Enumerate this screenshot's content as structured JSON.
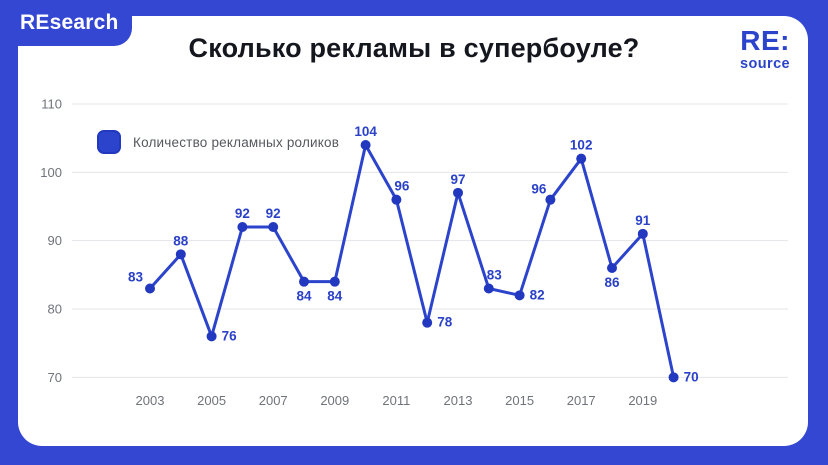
{
  "branding": {
    "badge": "REsearch",
    "logo_line1": "RE:",
    "logo_line2": "source"
  },
  "title": "Сколько рекламы в супербоуле?",
  "legend": {
    "label": "Количество рекламных роликов"
  },
  "colors": {
    "page_bg": "#3347d2",
    "card_bg": "#ffffff",
    "accent": "#2b44cb",
    "line_color": "#2c44cc",
    "point_color": "#2238bf",
    "label_color": "#2a41c8",
    "title_text": "#15171e",
    "axis_text": "#6f737a",
    "legend_text": "#55585e",
    "gridline": "#e4e5e9",
    "badge_text": "#ffffff"
  },
  "chart_data": {
    "type": "line",
    "title": "Сколько рекламы в супербоуле?",
    "xlabel": "",
    "ylabel": "",
    "x": [
      2003,
      2004,
      2005,
      2006,
      2007,
      2008,
      2009,
      2010,
      2011,
      2012,
      2013,
      2014,
      2015,
      2016,
      2017,
      2018,
      2019,
      2020
    ],
    "series": [
      {
        "name": "Количество рекламных роликов",
        "values": [
          83,
          88,
          76,
          92,
          92,
          84,
          84,
          104,
          96,
          78,
          97,
          83,
          82,
          96,
          102,
          86,
          91,
          70
        ]
      }
    ],
    "x_ticks": [
      2003,
      2005,
      2007,
      2009,
      2011,
      2013,
      2015,
      2017,
      2019
    ],
    "y_ticks": [
      70,
      80,
      90,
      100,
      110
    ],
    "ylim": [
      70,
      110
    ],
    "grid": "horizontal",
    "legend_position": "top-left",
    "point_labels_shown": true,
    "point_label_positions": [
      "left-above",
      "above",
      "right",
      "above",
      "above",
      "below",
      "below",
      "above",
      "above-right",
      "right",
      "above",
      "above-right",
      "right",
      "above-left",
      "above",
      "below",
      "above",
      "right"
    ]
  }
}
